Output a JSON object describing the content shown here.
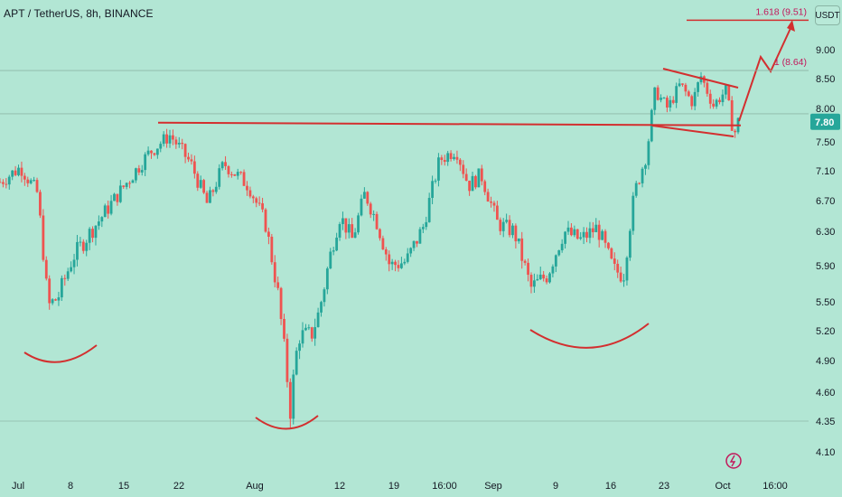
{
  "chart_data": {
    "type": "candlestick",
    "title": "APT / TetherUS, 8h, BINANCE",
    "unit": "USDT",
    "colors": {
      "background": "#b2e6d4",
      "up": "#26a69a",
      "down": "#ef5350",
      "drawing": "#d32f2f",
      "last_price_bg": "#26a69a"
    },
    "ylim": [
      3.95,
      9.85
    ],
    "price_ticks": [
      "9.00",
      "8.50",
      "8.00",
      "7.50",
      "7.10",
      "6.70",
      "6.30",
      "5.90",
      "5.50",
      "5.20",
      "4.90",
      "4.60",
      "4.35",
      "4.10"
    ],
    "x_tick_labels": [
      "Jul",
      "8",
      "15",
      "22",
      "Aug",
      "12",
      "19",
      "16:00",
      "Sep",
      "9",
      "16",
      "23",
      "Oct",
      "16:00"
    ],
    "last_price": "7.80",
    "fib_levels": [
      {
        "label": "1.618 (9.51)",
        "value": 9.51
      },
      {
        "label": "1 (8.64)",
        "value": 8.64
      }
    ],
    "key_levels": [
      7.76,
      8.64,
      4.35
    ],
    "close_path": [
      {
        "x": 0,
        "y": 6.95
      },
      {
        "x": 0.025,
        "y": 7.15
      },
      {
        "x": 0.045,
        "y": 6.8
      },
      {
        "x": 0.058,
        "y": 5.45
      },
      {
        "x": 0.07,
        "y": 5.55
      },
      {
        "x": 0.088,
        "y": 6.0
      },
      {
        "x": 0.12,
        "y": 6.45
      },
      {
        "x": 0.15,
        "y": 6.9
      },
      {
        "x": 0.18,
        "y": 7.35
      },
      {
        "x": 0.205,
        "y": 7.6
      },
      {
        "x": 0.23,
        "y": 7.2
      },
      {
        "x": 0.25,
        "y": 6.65
      },
      {
        "x": 0.27,
        "y": 7.2
      },
      {
        "x": 0.3,
        "y": 6.9
      },
      {
        "x": 0.32,
        "y": 6.4
      },
      {
        "x": 0.335,
        "y": 5.6
      },
      {
        "x": 0.35,
        "y": 4.45
      },
      {
        "x": 0.36,
        "y": 5.15
      },
      {
        "x": 0.375,
        "y": 5.15
      },
      {
        "x": 0.385,
        "y": 5.4
      },
      {
        "x": 0.4,
        "y": 6.1
      },
      {
        "x": 0.41,
        "y": 6.5
      },
      {
        "x": 0.425,
        "y": 6.2
      },
      {
        "x": 0.44,
        "y": 6.8
      },
      {
        "x": 0.455,
        "y": 6.4
      },
      {
        "x": 0.47,
        "y": 5.9
      },
      {
        "x": 0.49,
        "y": 5.95
      },
      {
        "x": 0.51,
        "y": 6.35
      },
      {
        "x": 0.53,
        "y": 7.25
      },
      {
        "x": 0.55,
        "y": 7.4
      },
      {
        "x": 0.565,
        "y": 6.9
      },
      {
        "x": 0.58,
        "y": 7.05
      },
      {
        "x": 0.6,
        "y": 6.4
      },
      {
        "x": 0.62,
        "y": 6.3
      },
      {
        "x": 0.64,
        "y": 5.65
      },
      {
        "x": 0.66,
        "y": 5.8
      },
      {
        "x": 0.68,
        "y": 6.3
      },
      {
        "x": 0.7,
        "y": 6.2
      },
      {
        "x": 0.72,
        "y": 6.35
      },
      {
        "x": 0.74,
        "y": 5.85
      },
      {
        "x": 0.752,
        "y": 5.8
      },
      {
        "x": 0.765,
        "y": 6.8
      },
      {
        "x": 0.78,
        "y": 7.35
      },
      {
        "x": 0.79,
        "y": 8.3
      },
      {
        "x": 0.805,
        "y": 8.0
      },
      {
        "x": 0.82,
        "y": 8.4
      },
      {
        "x": 0.835,
        "y": 8.1
      },
      {
        "x": 0.845,
        "y": 8.55
      },
      {
        "x": 0.86,
        "y": 8.05
      },
      {
        "x": 0.875,
        "y": 8.3
      },
      {
        "x": 0.885,
        "y": 7.6
      },
      {
        "x": 0.89,
        "y": 7.8
      }
    ]
  }
}
